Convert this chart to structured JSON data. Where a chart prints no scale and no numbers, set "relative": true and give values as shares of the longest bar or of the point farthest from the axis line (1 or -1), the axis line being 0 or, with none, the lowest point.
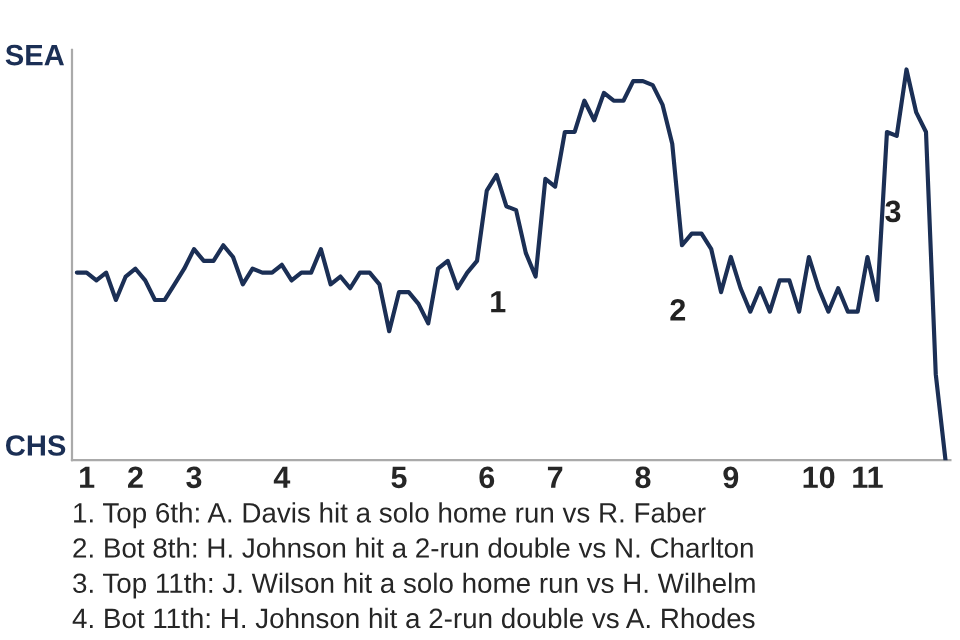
{
  "chart_data": {
    "type": "line",
    "categories": [
      null,
      "1",
      null,
      null,
      null,
      null,
      "2",
      null,
      null,
      null,
      null,
      null,
      "3",
      null,
      null,
      null,
      null,
      null,
      null,
      null,
      null,
      "4",
      null,
      null,
      null,
      null,
      null,
      null,
      null,
      null,
      null,
      null,
      null,
      "5",
      null,
      null,
      null,
      null,
      null,
      null,
      null,
      null,
      "6",
      null,
      null,
      null,
      null,
      null,
      null,
      "7",
      null,
      null,
      null,
      null,
      null,
      null,
      null,
      null,
      "8",
      null,
      null,
      null,
      null,
      null,
      null,
      null,
      null,
      "9",
      null,
      null,
      null,
      null,
      null,
      null,
      null,
      null,
      "10",
      null,
      null,
      null,
      null,
      "11",
      null,
      null,
      null,
      null,
      null,
      null,
      null,
      null
    ],
    "relative": true,
    "series": [
      {
        "color": "#1b2f55",
        "values": [
          0.48,
          0.48,
          0.46,
          0.48,
          0.41,
          0.47,
          0.49,
          0.46,
          0.41,
          0.41,
          0.45,
          0.49,
          0.54,
          0.51,
          0.51,
          0.55,
          0.52,
          0.45,
          0.49,
          0.48,
          0.48,
          0.5,
          0.46,
          0.48,
          0.48,
          0.54,
          0.45,
          0.47,
          0.44,
          0.48,
          0.48,
          0.45,
          0.33,
          0.43,
          0.43,
          0.4,
          0.35,
          0.49,
          0.51,
          0.44,
          0.48,
          0.51,
          0.69,
          0.73,
          0.65,
          0.64,
          0.53,
          0.47,
          0.72,
          0.7,
          0.84,
          0.84,
          0.92,
          0.87,
          0.94,
          0.92,
          0.92,
          0.97,
          0.97,
          0.96,
          0.91,
          0.81,
          0.55,
          0.58,
          0.58,
          0.54,
          0.43,
          0.52,
          0.44,
          0.38,
          0.44,
          0.38,
          0.46,
          0.46,
          0.38,
          0.52,
          0.44,
          0.38,
          0.44,
          0.38,
          0.38,
          0.52,
          0.41,
          0.84,
          0.83,
          1,
          0.89,
          0.84,
          0.22,
          0
        ]
      }
    ],
    "marker": "none",
    "line_style": "solid",
    "annotations": [
      "SEA",
      "CHS",
      "1",
      "2",
      "3",
      "1. Top 6th: A. Davis hit a solo home run vs R. Faber",
      "2. Bot 8th: H. Johnson hit a 2-run double vs N. Charlton",
      "3. Top 11th: J. Wilson hit a solo home run vs H. Wilhelm",
      "4. Bot 11th: H. Johnson hit a 2-run double vs A. Rhodes"
    ]
  }
}
